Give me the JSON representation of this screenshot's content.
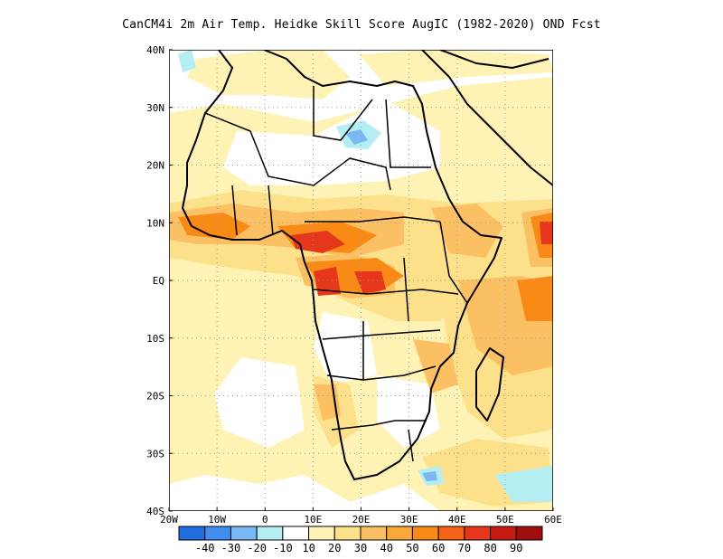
{
  "title": "CanCM4i  2m Air Temp. Heidke Skill Score AugIC (1982-2020) OND Fcst",
  "map": {
    "lon_range": [
      -20,
      60
    ],
    "lat_range": [
      -40,
      40
    ],
    "lon_ticks": [
      {
        "value": -20,
        "label": "20W"
      },
      {
        "value": -10,
        "label": "10W"
      },
      {
        "value": 0,
        "label": "0"
      },
      {
        "value": 10,
        "label": "10E"
      },
      {
        "value": 20,
        "label": "20E"
      },
      {
        "value": 30,
        "label": "30E"
      },
      {
        "value": 40,
        "label": "40E"
      },
      {
        "value": 50,
        "label": "50E"
      },
      {
        "value": 60,
        "label": "60E"
      }
    ],
    "lat_ticks": [
      {
        "value": 40,
        "label": "40N"
      },
      {
        "value": 30,
        "label": "30N"
      },
      {
        "value": 20,
        "label": "20N"
      },
      {
        "value": 10,
        "label": "10N"
      },
      {
        "value": 0,
        "label": "EQ"
      },
      {
        "value": -10,
        "label": "10S"
      },
      {
        "value": -20,
        "label": "20S"
      },
      {
        "value": -30,
        "label": "30S"
      },
      {
        "value": -40,
        "label": "40S"
      }
    ],
    "gridlines": "dotted"
  },
  "colorbar": {
    "colors": [
      "#1f6fe0",
      "#3f8ef0",
      "#79b8f2",
      "#b4eef2",
      "#ffffff",
      "#fef2b4",
      "#fde08a",
      "#fcc064",
      "#fba83a",
      "#f98a16",
      "#f46418",
      "#e6371c",
      "#c51b14",
      "#a00e0e"
    ],
    "labels": [
      "-40",
      "-30",
      "-20",
      "-10",
      "10",
      "20",
      "30",
      "40",
      "50",
      "60",
      "70",
      "80",
      "90"
    ]
  }
}
